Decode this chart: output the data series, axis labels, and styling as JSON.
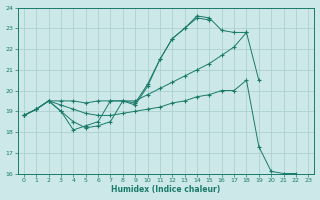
{
  "xlabel": "Humidex (Indice chaleur)",
  "xlim": [
    -0.5,
    23.5
  ],
  "ylim": [
    16,
    24
  ],
  "xticks": [
    0,
    1,
    2,
    3,
    4,
    5,
    6,
    7,
    8,
    9,
    10,
    11,
    12,
    13,
    14,
    15,
    16,
    17,
    18,
    19,
    20,
    21,
    22,
    23
  ],
  "yticks": [
    16,
    17,
    18,
    19,
    20,
    21,
    22,
    23,
    24
  ],
  "bg_color": "#cce8e8",
  "line_color": "#1a7a6a",
  "series1_x": [
    0,
    1,
    2,
    3,
    4,
    5,
    6,
    7,
    8,
    9,
    10,
    11,
    12,
    13,
    14,
    15,
    16,
    17,
    18
  ],
  "series1_y": [
    18.8,
    19.1,
    19.5,
    19.0,
    18.1,
    18.3,
    18.5,
    19.5,
    19.5,
    19.3,
    20.2,
    21.5,
    22.5,
    23.0,
    23.6,
    23.5,
    22.9,
    22.8,
    22.8
  ],
  "series2_x": [
    0,
    1,
    2,
    3,
    4,
    5,
    6,
    7,
    8,
    9,
    10,
    11,
    12,
    13,
    14,
    15
  ],
  "series2_y": [
    18.8,
    19.1,
    19.5,
    19.0,
    18.5,
    18.2,
    18.3,
    18.5,
    19.5,
    19.4,
    20.3,
    21.5,
    22.5,
    23.0,
    23.5,
    23.4
  ],
  "series3_x": [
    0,
    1,
    2,
    3,
    4,
    5,
    6,
    7,
    8,
    9,
    10,
    11,
    12,
    13,
    14,
    15,
    16,
    17,
    18,
    19
  ],
  "series3_y": [
    18.8,
    19.1,
    19.5,
    19.5,
    19.5,
    19.4,
    19.5,
    19.5,
    19.5,
    19.5,
    19.8,
    20.1,
    20.4,
    20.7,
    21.0,
    21.3,
    21.7,
    22.1,
    22.8,
    20.5
  ],
  "series4_x": [
    0,
    1,
    2,
    3,
    4,
    5,
    6,
    7,
    8,
    9,
    10,
    11,
    12,
    13,
    14,
    15,
    16,
    17,
    18,
    19,
    20,
    21,
    22
  ],
  "series4_y": [
    18.8,
    19.1,
    19.5,
    19.3,
    19.1,
    18.9,
    18.8,
    18.8,
    18.9,
    19.0,
    19.1,
    19.2,
    19.4,
    19.5,
    19.7,
    19.8,
    20.0,
    20.0,
    20.5,
    17.3,
    16.1,
    16.0,
    16.0
  ]
}
